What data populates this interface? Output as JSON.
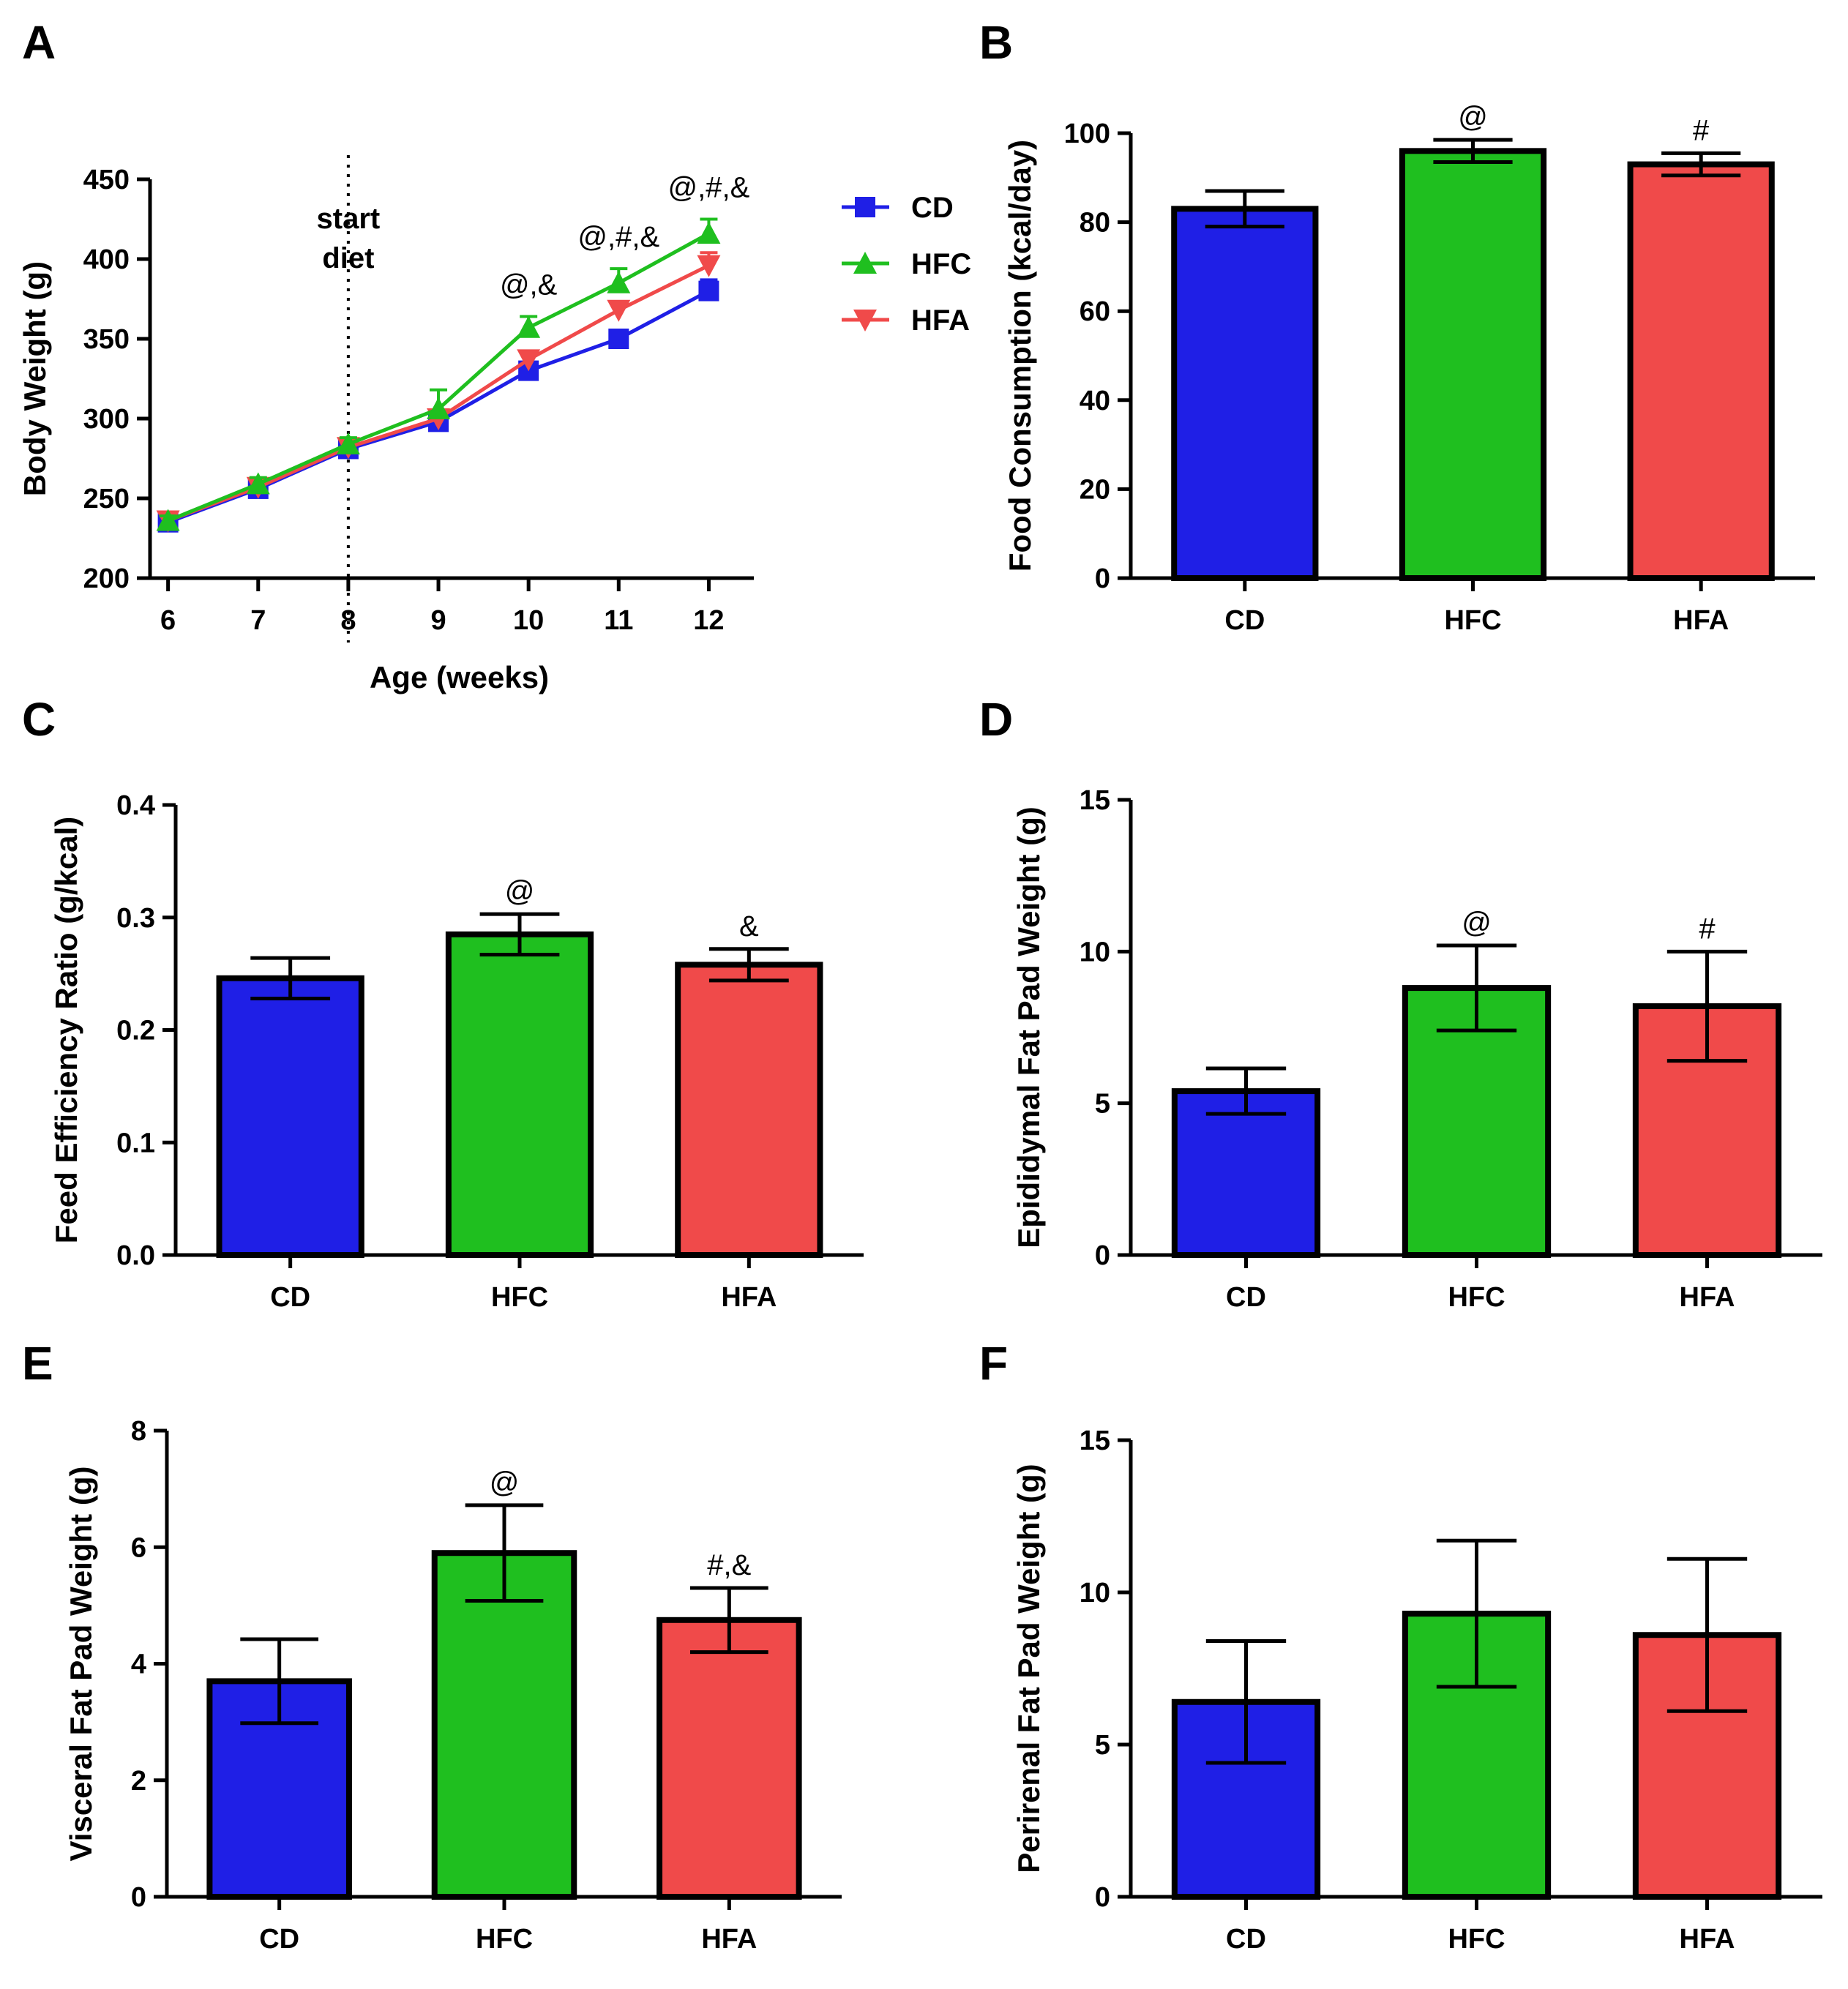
{
  "chart_data": [
    {
      "panel": "A",
      "type": "line",
      "xlabel": "Age (weeks)",
      "ylabel": "Body Weight (g)",
      "ylim": [
        200,
        450
      ],
      "xlim": [
        5.8,
        12.5
      ],
      "x": [
        6,
        7,
        8,
        9,
        10,
        11,
        12
      ],
      "yticks": [
        200,
        250,
        300,
        350,
        400,
        450
      ],
      "callout": [
        "start",
        "diet"
      ],
      "callout_x": 8,
      "series": [
        {
          "name": "CD",
          "color": "#1f1fe6",
          "marker": "square",
          "values": [
            235,
            256,
            281,
            298,
            330,
            350,
            380
          ],
          "errors": [
            3,
            4,
            4,
            5,
            4,
            4,
            7
          ]
        },
        {
          "name": "HFC",
          "color": "#1fbf1f",
          "marker": "triangle-up",
          "values": [
            236,
            259,
            284,
            306,
            357,
            385,
            416
          ],
          "errors": [
            3,
            4,
            4,
            12,
            7,
            9,
            9
          ]
        },
        {
          "name": "HFA",
          "color": "#f04a4a",
          "marker": "triangle-down",
          "values": [
            236,
            257,
            282,
            300,
            337,
            368,
            396
          ],
          "errors": [
            3,
            4,
            4,
            5,
            5,
            5,
            8
          ]
        }
      ],
      "annotations": [
        {
          "x": 10,
          "text": "@,&"
        },
        {
          "x": 11,
          "text": "@,#,&"
        },
        {
          "x": 12,
          "text": "@,#,&"
        }
      ]
    },
    {
      "panel": "B",
      "type": "bar",
      "ylabel": "Food Consumption (kcal/day)",
      "ylim": [
        0,
        100
      ],
      "yticks": [
        0,
        20,
        40,
        60,
        80,
        100
      ],
      "categories": [
        "CD",
        "HFC",
        "HFA"
      ],
      "colors": [
        "#1f1fe6",
        "#1fbf1f",
        "#f04a4a"
      ],
      "values": [
        83,
        96,
        93
      ],
      "errors": [
        4,
        2.5,
        2.5
      ],
      "annotations": [
        "",
        "@",
        "#"
      ]
    },
    {
      "panel": "C",
      "type": "bar",
      "ylabel": "Feed Efficiency Ratio (g/kcal)",
      "ylim": [
        0,
        0.4
      ],
      "yticks": [
        "0.0",
        "0.1",
        "0.2",
        "0.3",
        "0.4"
      ],
      "categories": [
        "CD",
        "HFC",
        "HFA"
      ],
      "colors": [
        "#1f1fe6",
        "#1fbf1f",
        "#f04a4a"
      ],
      "values": [
        0.246,
        0.285,
        0.258
      ],
      "errors": [
        0.018,
        0.018,
        0.014
      ],
      "annotations": [
        "",
        "@",
        "&"
      ]
    },
    {
      "panel": "D",
      "type": "bar",
      "ylabel": "Epididymal Fat Pad Weight (g)",
      "ylim": [
        0,
        15
      ],
      "yticks": [
        0,
        5,
        10,
        15
      ],
      "categories": [
        "CD",
        "HFC",
        "HFA"
      ],
      "colors": [
        "#1f1fe6",
        "#1fbf1f",
        "#f04a4a"
      ],
      "values": [
        5.4,
        8.8,
        8.2
      ],
      "errors": [
        0.75,
        1.4,
        1.8
      ],
      "annotations": [
        "",
        "@",
        "#"
      ]
    },
    {
      "panel": "E",
      "type": "bar",
      "ylabel": "Visceral Fat Pad Weight (g)",
      "ylim": [
        0,
        8
      ],
      "yticks": [
        0,
        2,
        4,
        6,
        8
      ],
      "categories": [
        "CD",
        "HFC",
        "HFA"
      ],
      "colors": [
        "#1f1fe6",
        "#1fbf1f",
        "#f04a4a"
      ],
      "values": [
        3.7,
        5.9,
        4.75
      ],
      "errors": [
        0.72,
        0.82,
        0.55
      ],
      "annotations": [
        "",
        "@",
        "#,&"
      ]
    },
    {
      "panel": "F",
      "type": "bar",
      "ylabel": "Perirenal Fat Pad Weight (g)",
      "ylim": [
        0,
        15
      ],
      "yticks": [
        0,
        5,
        10,
        15
      ],
      "categories": [
        "CD",
        "HFC",
        "HFA"
      ],
      "colors": [
        "#1f1fe6",
        "#1fbf1f",
        "#f04a4a"
      ],
      "values": [
        6.4,
        9.3,
        8.6
      ],
      "errors": [
        2.0,
        2.4,
        2.5
      ],
      "annotations": [
        "",
        "",
        ""
      ]
    }
  ]
}
